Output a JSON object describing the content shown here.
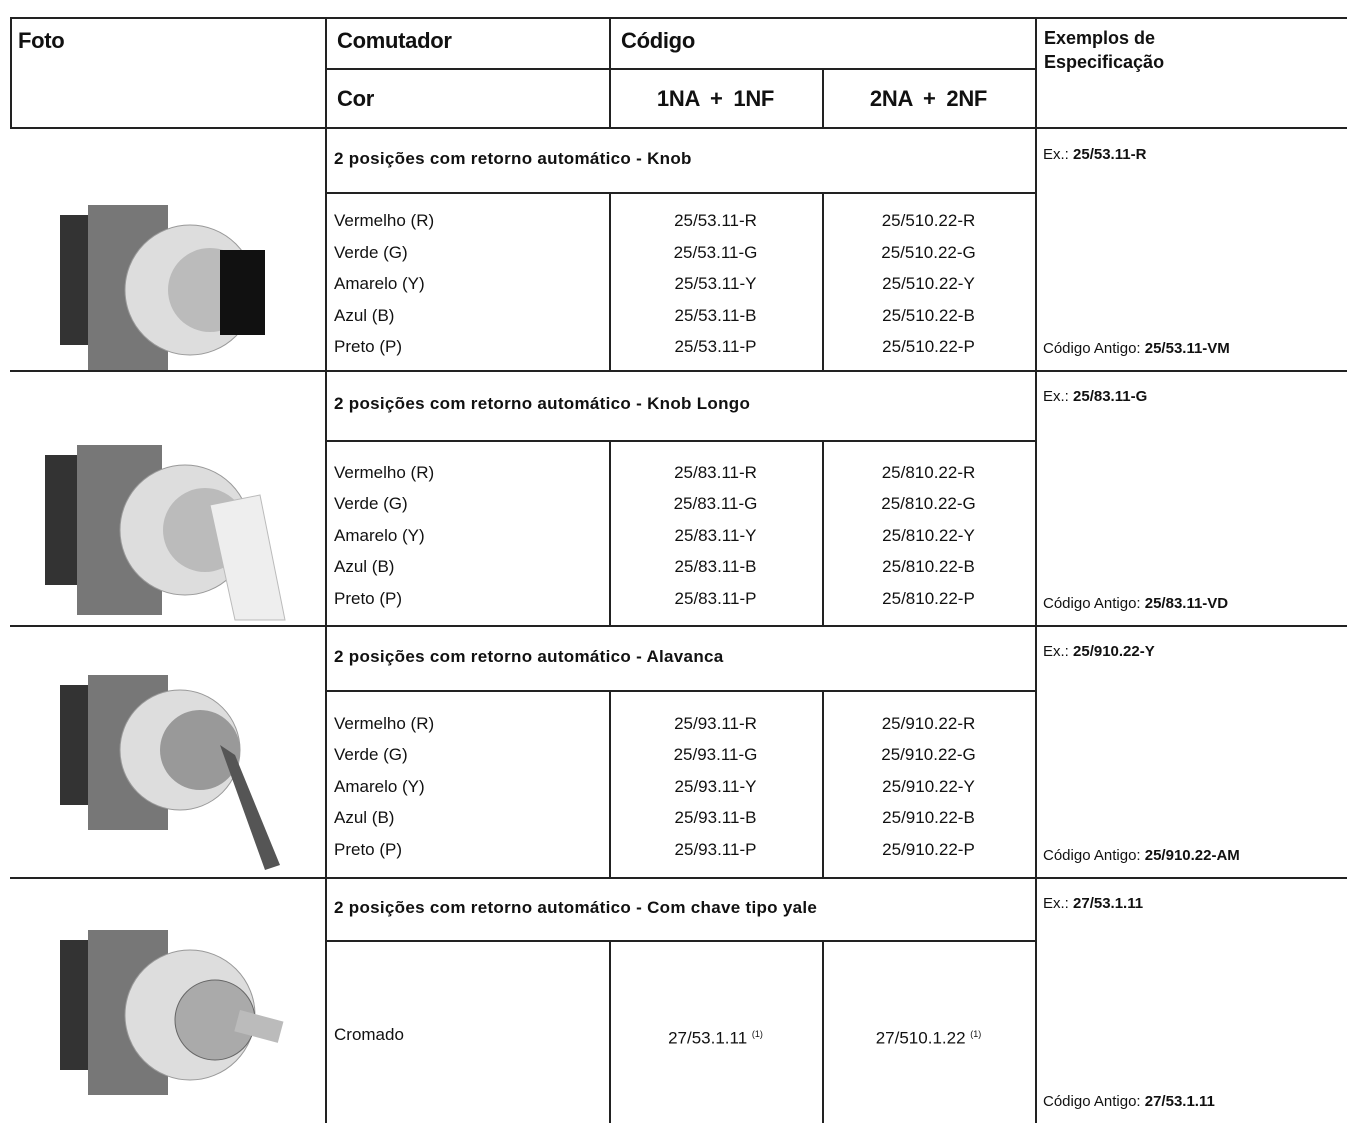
{
  "header": {
    "foto": "Foto",
    "comutador": "Comutador",
    "codigo": "Código",
    "cor": "Cor",
    "col1": "1NA + 1NF",
    "col2": "2NA + 2NF",
    "exemplos": "Exemplos de Especificação"
  },
  "sections": [
    {
      "title": "2 posições com retorno automático -  Knob",
      "example_prefix": "Ex.:",
      "example_code": "25/53.11-R",
      "old_prefix": "Código Antigo:",
      "old_code": "25/53.11-VM",
      "rows": [
        {
          "color": "Vermelho (R)",
          "codes": [
            "25/53.11-R",
            "25/510.22-R"
          ]
        },
        {
          "color": "Verde (G)",
          "codes": [
            "25/53.11-G",
            "25/510.22-G"
          ]
        },
        {
          "color": "Amarelo (Y)",
          "codes": [
            "25/53.11-Y",
            "25/510.22-Y"
          ]
        },
        {
          "color": "Azul (B)",
          "codes": [
            "25/53.11-B",
            "25/510.22-B"
          ]
        },
        {
          "color": "Preto (P)",
          "codes": [
            "25/53.11-P",
            "25/510.22-P"
          ]
        }
      ]
    },
    {
      "title": "2 posições com retorno automático - Knob Longo",
      "example_prefix": "Ex.:",
      "example_code": "25/83.11-G",
      "old_prefix": "Código Antigo:",
      "old_code": "25/83.11-VD",
      "rows": [
        {
          "color": "Vermelho (R)",
          "codes": [
            "25/83.11-R",
            "25/810.22-R"
          ]
        },
        {
          "color": "Verde (G)",
          "codes": [
            "25/83.11-G",
            "25/810.22-G"
          ]
        },
        {
          "color": "Amarelo (Y)",
          "codes": [
            "25/83.11-Y",
            "25/810.22-Y"
          ]
        },
        {
          "color": "Azul (B)",
          "codes": [
            "25/83.11-B",
            "25/810.22-B"
          ]
        },
        {
          "color": "Preto (P)",
          "codes": [
            "25/83.11-P",
            "25/810.22-P"
          ]
        }
      ]
    },
    {
      "title": "2 posições com retorno automático - Alavanca",
      "example_prefix": "Ex.:",
      "example_code": "25/910.22-Y",
      "old_prefix": "Código Antigo:",
      "old_code": "25/910.22-AM",
      "rows": [
        {
          "color": "Vermelho (R)",
          "codes": [
            "25/93.11-R",
            "25/910.22-R"
          ]
        },
        {
          "color": "Verde (G)",
          "codes": [
            "25/93.11-G",
            "25/910.22-G"
          ]
        },
        {
          "color": "Amarelo (Y)",
          "codes": [
            "25/93.11-Y",
            "25/910.22-Y"
          ]
        },
        {
          "color": "Azul (B)",
          "codes": [
            "25/93.11-B",
            "25/910.22-B"
          ]
        },
        {
          "color": "Preto (P)",
          "codes": [
            "25/93.11-P",
            "25/910.22-P"
          ]
        }
      ]
    },
    {
      "title": "2 posições com retorno automático - Com chave tipo yale",
      "example_prefix": "Ex.:",
      "example_code": "27/53.1.11",
      "old_prefix": "Código Antigo:",
      "old_code": "27/53.1.11",
      "rows": [
        {
          "color": "Cromado",
          "codes": [
            "27/53.1.11",
            "27/510.1.22"
          ],
          "notes": [
            "(1)",
            "(1)"
          ]
        }
      ]
    }
  ]
}
